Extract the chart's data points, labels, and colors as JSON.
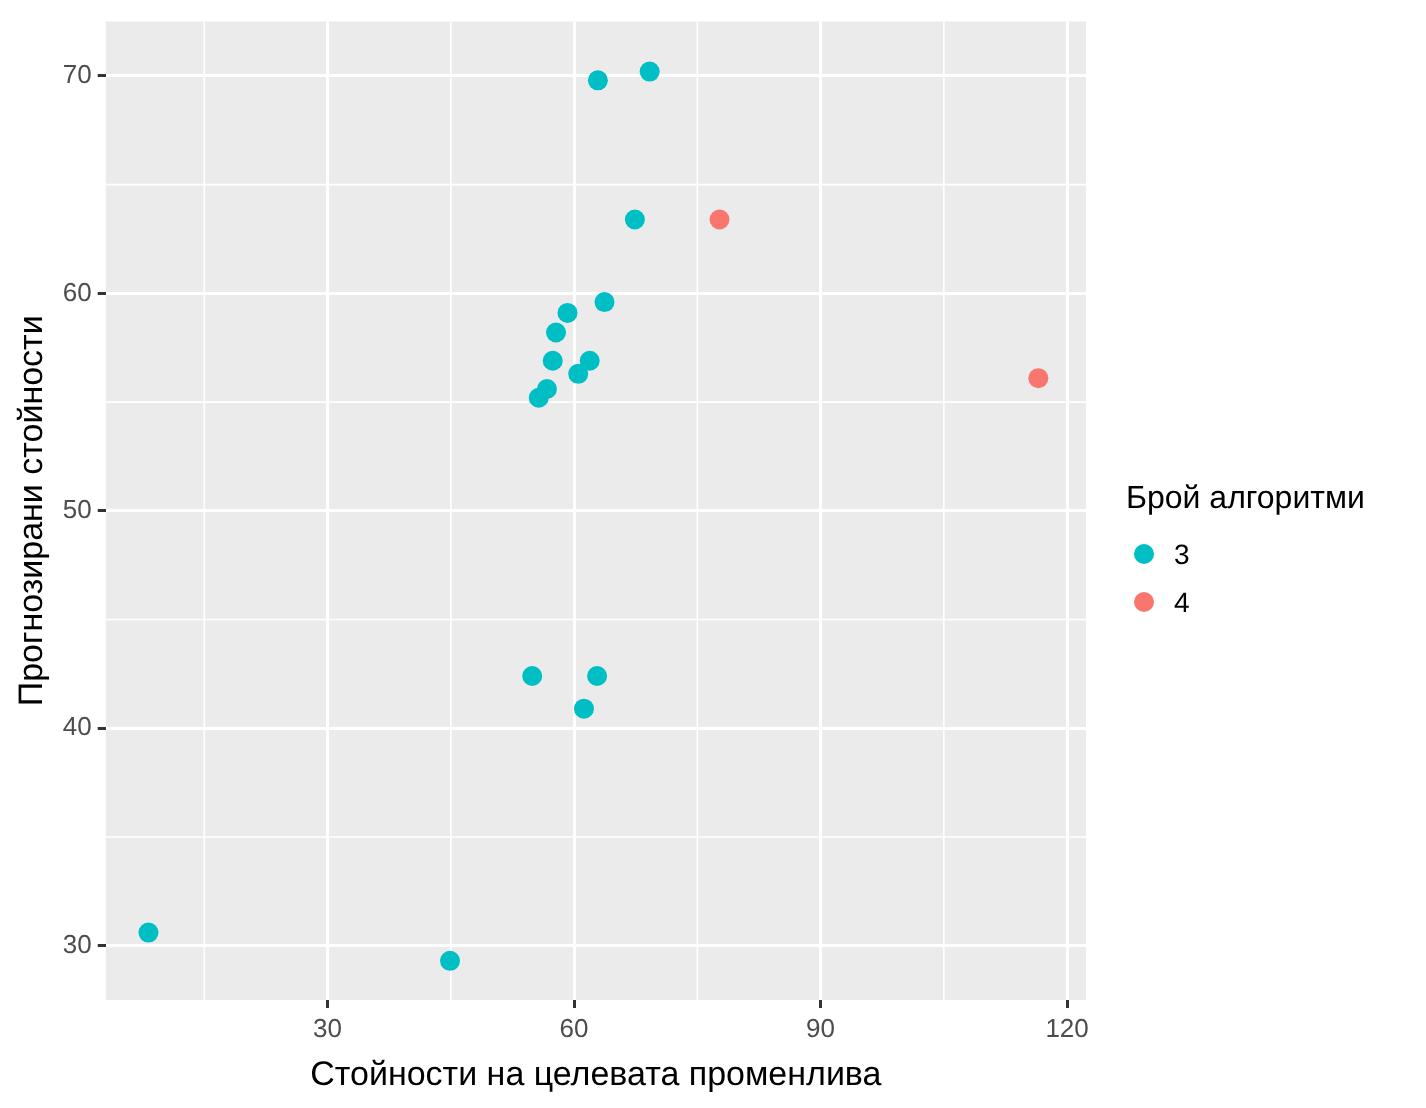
{
  "chart_data": {
    "type": "scatter",
    "xlabel": "Стойности на целевата променлива",
    "ylabel": "Прогнозирани стойности",
    "legend_title": "Брой алгоритми",
    "legend": "right",
    "grid": true,
    "marker": "circle",
    "xlim": [
      3,
      122.3
    ],
    "xticks": [
      30,
      60,
      90,
      120
    ],
    "ylim": [
      27.5,
      72.5
    ],
    "yticks": [
      30,
      40,
      50,
      60,
      70
    ],
    "series": [
      {
        "name": "3",
        "color": "#00bfc4",
        "x": [
          62.9,
          69.2,
          67.4,
          63.7,
          59.2,
          57.8,
          57.4,
          61.9,
          60.5,
          56.7,
          55.7,
          54.9,
          62.8,
          61.2,
          8.2,
          44.9
        ],
        "values": [
          69.8,
          70.2,
          63.4,
          59.6,
          59.1,
          58.2,
          56.9,
          56.9,
          56.3,
          55.6,
          55.2,
          42.4,
          42.4,
          40.9,
          30.6,
          29.3
        ]
      },
      {
        "name": "4",
        "color": "#f8766d",
        "x": [
          77.7,
          116.5
        ],
        "values": [
          63.4,
          56.1
        ]
      }
    ]
  }
}
